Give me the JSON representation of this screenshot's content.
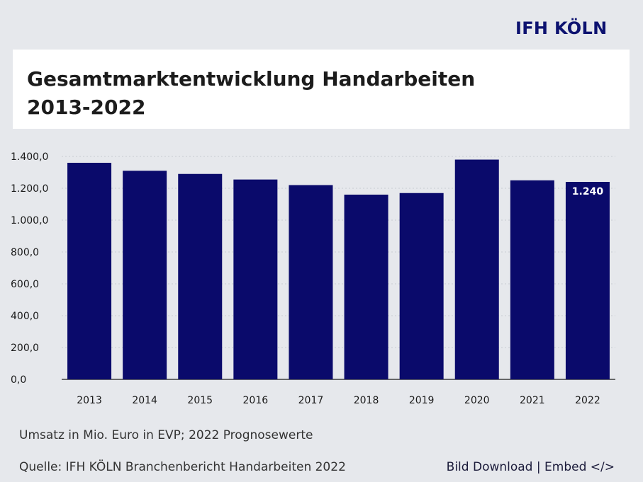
{
  "brand": "IFH KÖLN",
  "title_line1": "Gesamtmarktentwicklung Handarbeiten",
  "title_line2": "2013-2022",
  "note": "Umsatz in Mio. Euro in EVP; 2022 Prognosewerte",
  "source": "Quelle: IFH KÖLN Branchenbericht Handarbeiten 2022",
  "links": {
    "download": "Bild Download",
    "separator": "|",
    "embed": "Embed </>"
  },
  "colors": {
    "bar": "#0a0a6b",
    "grid": "#c8cbd2",
    "axis": "#1a1a1a"
  },
  "chart_data": {
    "type": "bar",
    "categories": [
      "2013",
      "2014",
      "2015",
      "2016",
      "2017",
      "2018",
      "2019",
      "2020",
      "2021",
      "2022"
    ],
    "values": [
      1360,
      1310,
      1290,
      1255,
      1220,
      1160,
      1170,
      1380,
      1250,
      1240
    ],
    "yticks": [
      "0,0",
      "200,0",
      "400,0",
      "600,0",
      "800,0",
      "1.000,0",
      "1.200,0",
      "1.400,0"
    ],
    "ylim": [
      0,
      1400
    ],
    "data_labels": [
      {
        "index": 9,
        "text": "1.240"
      }
    ],
    "grid": true
  }
}
